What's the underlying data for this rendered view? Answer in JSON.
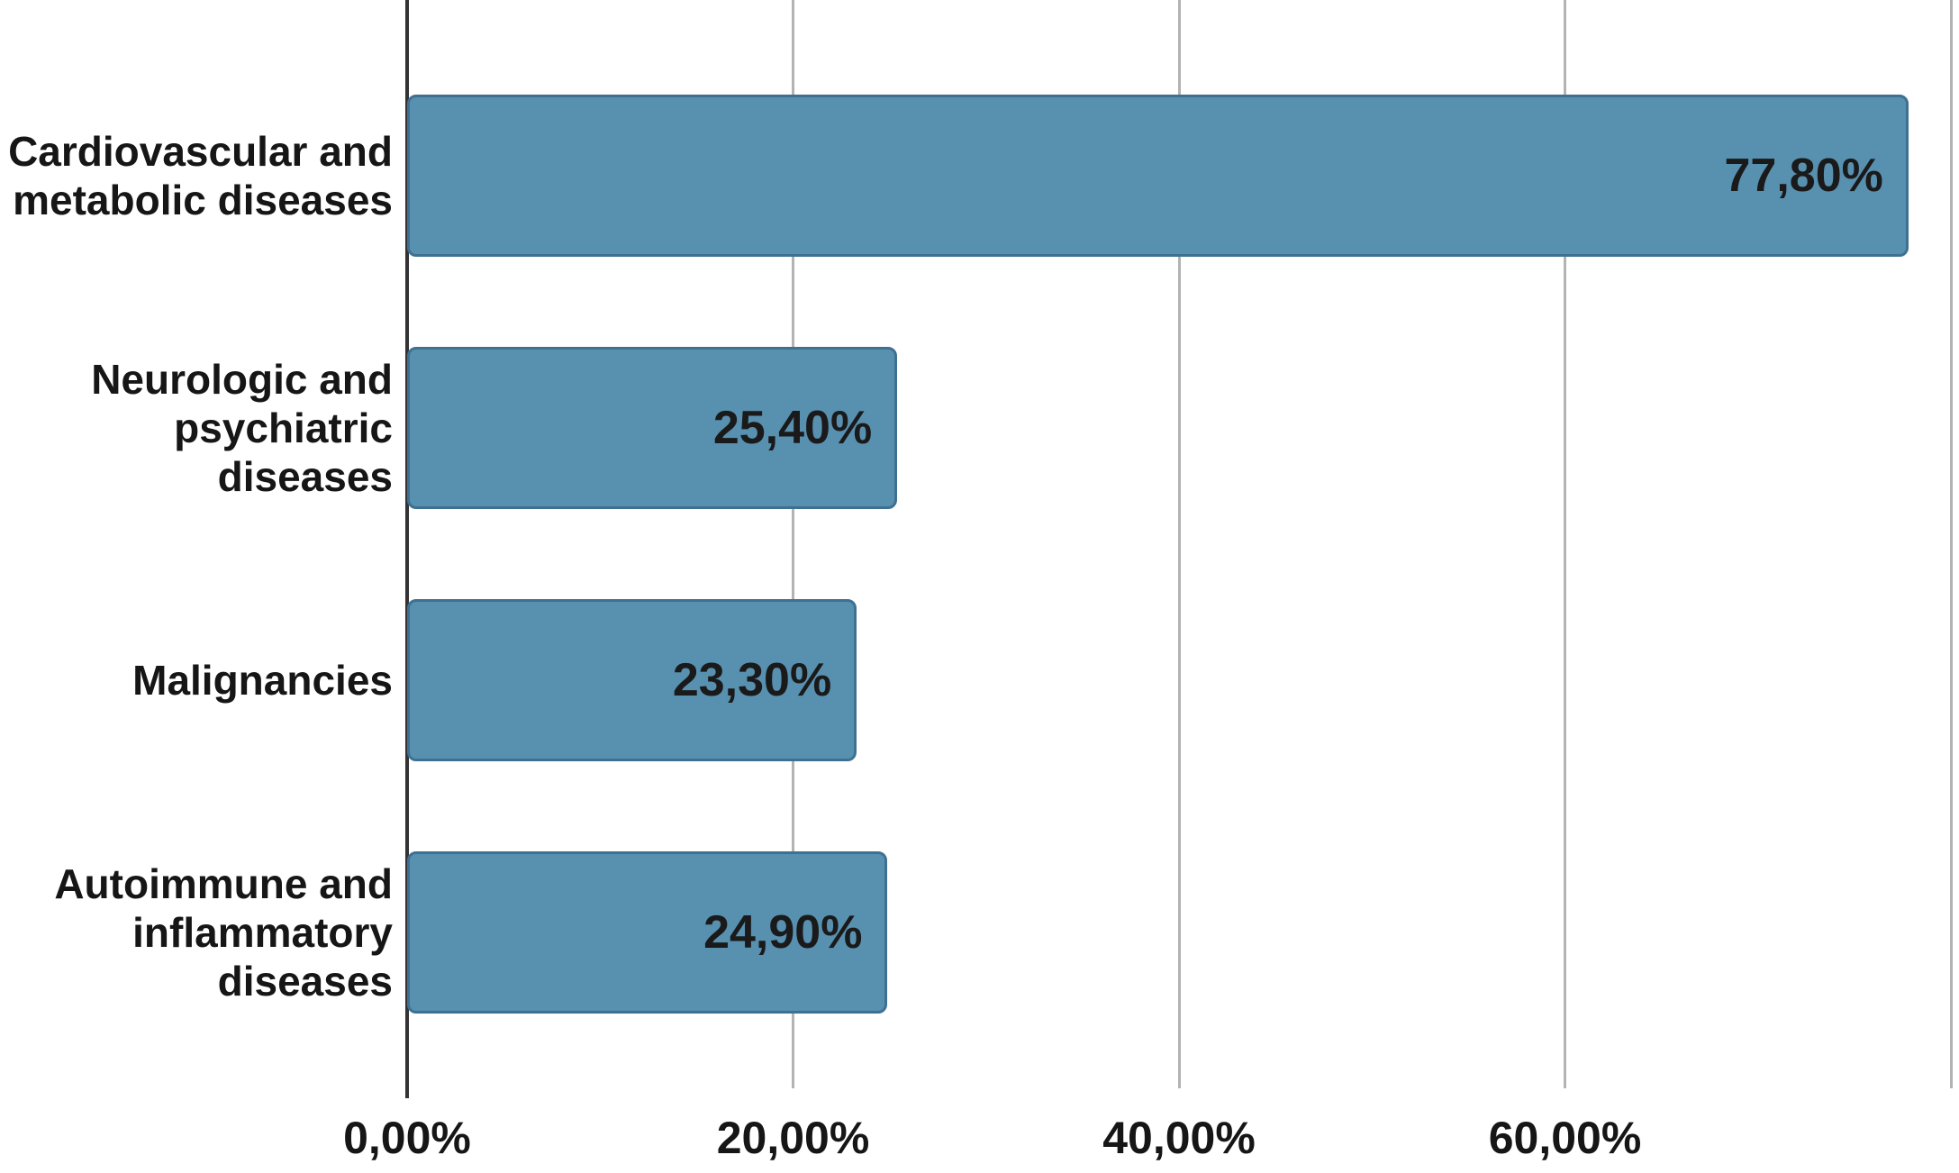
{
  "chart_data": {
    "type": "bar",
    "orientation": "horizontal",
    "title": "",
    "xlabel": "",
    "ylabel": "",
    "xlim": [
      0,
      80
    ],
    "grid": true,
    "legend": "none",
    "bar_color": "#5890b0",
    "bar_border_color": "#3e7191",
    "axis_line_color": "#333333",
    "gridline_color": "#b3b3b3",
    "text_color": "#161616",
    "categories": [
      "Cardiovascular and metabolic diseases",
      "Neurologic and psychiatric diseases",
      "Malignancies",
      "Autoimmune and inflammatory diseases"
    ],
    "category_lines": [
      [
        "Cardiovascular and",
        "metabolic diseases"
      ],
      [
        "Neurologic and",
        "psychiatric",
        "diseases"
      ],
      [
        "Malignancies"
      ],
      [
        "Autoimmune and",
        "inflammatory",
        "diseases"
      ]
    ],
    "values": [
      77.8,
      25.4,
      23.3,
      24.9
    ],
    "value_labels": [
      "77,80%",
      "25,40%",
      "23,30%",
      "24,90%"
    ],
    "xticks": [
      {
        "value": 0,
        "label": "0,00%"
      },
      {
        "value": 20,
        "label": "20,00%"
      },
      {
        "value": 40,
        "label": "40,00%"
      },
      {
        "value": 60,
        "label": "60,00%"
      },
      {
        "value": 80,
        "label": ""
      }
    ]
  }
}
